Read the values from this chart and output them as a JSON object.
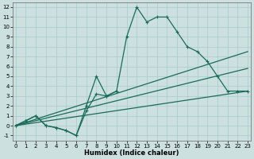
{
  "xlabel": "Humidex (Indice chaleur)",
  "bg_color": "#cce0df",
  "grid_color": "#aacfcc",
  "line_color": "#1a6b5a",
  "curve1_x": [
    0,
    1,
    2,
    3,
    4,
    5,
    6,
    7,
    8,
    9,
    10,
    11,
    12,
    13,
    14,
    15,
    16,
    17,
    18,
    19,
    20,
    21,
    22,
    23
  ],
  "curve1_y": [
    0,
    0.5,
    1,
    0,
    -0.2,
    -0.5,
    -1,
    1.5,
    3.2,
    3.0,
    3.5,
    9.0,
    12.0,
    10.5,
    11.0,
    11.0,
    9.5,
    8.0,
    7.5,
    6.5,
    5.0,
    3.5,
    3.5,
    3.5
  ],
  "curve2_x": [
    0,
    1,
    2,
    3,
    4,
    5,
    6,
    7,
    8,
    9,
    10
  ],
  "curve2_y": [
    0,
    0.5,
    1,
    0,
    -0.2,
    -0.5,
    -1,
    2.0,
    5.0,
    3.0,
    3.5
  ],
  "line1_x": [
    0,
    23
  ],
  "line1_y": [
    0,
    3.5
  ],
  "line2_x": [
    0,
    23
  ],
  "line2_y": [
    0,
    5.8
  ],
  "line3_x": [
    0,
    23
  ],
  "line3_y": [
    0,
    7.5
  ],
  "xlim": [
    -0.3,
    23.3
  ],
  "ylim": [
    -1.5,
    12.5
  ],
  "xticks": [
    0,
    1,
    2,
    3,
    4,
    5,
    6,
    7,
    8,
    9,
    10,
    11,
    12,
    13,
    14,
    15,
    16,
    17,
    18,
    19,
    20,
    21,
    22,
    23
  ],
  "yticks": [
    -1,
    0,
    1,
    2,
    3,
    4,
    5,
    6,
    7,
    8,
    9,
    10,
    11,
    12
  ],
  "tick_fontsize": 5,
  "xlabel_fontsize": 6
}
